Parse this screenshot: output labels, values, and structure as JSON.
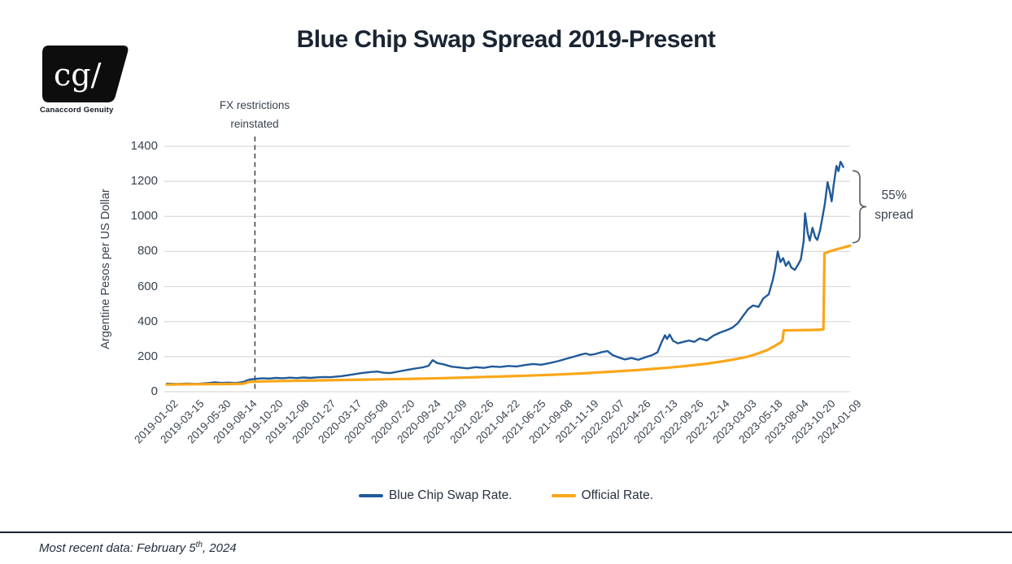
{
  "header": {
    "logo": {
      "mark": "cg/",
      "company": "Canaccord Genuity"
    }
  },
  "chart_data": {
    "type": "line",
    "title": "Blue Chip Swap Spread 2019-Present",
    "xlabel": "",
    "ylabel": "Argentine Pesos per US Dollar",
    "ylim": [
      0,
      1400
    ],
    "y_ticks": [
      0,
      200,
      400,
      600,
      800,
      1000,
      1200,
      1400
    ],
    "grid": "horizontal",
    "legend_position": "bottom",
    "x_labels": [
      "2019-01-02",
      "2019-03-15",
      "2019-05-30",
      "2019-08-14",
      "2019-10-20",
      "2019-12-08",
      "2020-01-27",
      "2020-03-17",
      "2020-05-08",
      "2020-07-20",
      "2020-09-24",
      "2020-12-09",
      "2021-02-26",
      "2021-04-22",
      "2021-06-25",
      "2021-09-08",
      "2021-11-19",
      "2022-02-07",
      "2022-04-26",
      "2022-07-13",
      "2022-09-26",
      "2022-12-14",
      "2023-03-03",
      "2023-05-18",
      "2023-08-04",
      "2023-10-20",
      "2024-01-09"
    ],
    "series": [
      {
        "name": "Blue Chip Swap Rate.",
        "color": "#205A99",
        "points": [
          [
            0.0,
            46
          ],
          [
            0.015,
            44
          ],
          [
            0.03,
            47
          ],
          [
            0.045,
            45
          ],
          [
            0.06,
            49
          ],
          [
            0.07,
            54
          ],
          [
            0.08,
            50
          ],
          [
            0.09,
            52
          ],
          [
            0.1,
            50
          ],
          [
            0.108,
            53
          ],
          [
            0.113,
            57
          ],
          [
            0.118,
            66
          ],
          [
            0.124,
            71
          ],
          [
            0.129,
            73
          ],
          [
            0.14,
            77
          ],
          [
            0.15,
            75
          ],
          [
            0.16,
            79
          ],
          [
            0.17,
            77
          ],
          [
            0.18,
            80
          ],
          [
            0.19,
            78
          ],
          [
            0.2,
            81
          ],
          [
            0.21,
            79
          ],
          [
            0.22,
            82
          ],
          [
            0.23,
            84
          ],
          [
            0.24,
            83
          ],
          [
            0.256,
            89
          ],
          [
            0.27,
            97
          ],
          [
            0.285,
            106
          ],
          [
            0.298,
            112
          ],
          [
            0.308,
            115
          ],
          [
            0.318,
            108
          ],
          [
            0.327,
            106
          ],
          [
            0.34,
            116
          ],
          [
            0.351,
            124
          ],
          [
            0.363,
            132
          ],
          [
            0.375,
            139
          ],
          [
            0.383,
            148
          ],
          [
            0.389,
            180
          ],
          [
            0.396,
            163
          ],
          [
            0.405,
            156
          ],
          [
            0.417,
            143
          ],
          [
            0.428,
            138
          ],
          [
            0.44,
            133
          ],
          [
            0.452,
            140
          ],
          [
            0.464,
            136
          ],
          [
            0.476,
            144
          ],
          [
            0.488,
            141
          ],
          [
            0.5,
            147
          ],
          [
            0.512,
            144
          ],
          [
            0.524,
            152
          ],
          [
            0.536,
            158
          ],
          [
            0.548,
            154
          ],
          [
            0.56,
            163
          ],
          [
            0.572,
            174
          ],
          [
            0.585,
            188
          ],
          [
            0.598,
            202
          ],
          [
            0.606,
            212
          ],
          [
            0.613,
            218
          ],
          [
            0.62,
            210
          ],
          [
            0.628,
            216
          ],
          [
            0.637,
            226
          ],
          [
            0.645,
            232
          ],
          [
            0.652,
            210
          ],
          [
            0.661,
            196
          ],
          [
            0.67,
            184
          ],
          [
            0.68,
            192
          ],
          [
            0.69,
            182
          ],
          [
            0.7,
            196
          ],
          [
            0.71,
            208
          ],
          [
            0.718,
            224
          ],
          [
            0.724,
            282
          ],
          [
            0.729,
            322
          ],
          [
            0.732,
            301
          ],
          [
            0.736,
            326
          ],
          [
            0.741,
            290
          ],
          [
            0.748,
            276
          ],
          [
            0.756,
            284
          ],
          [
            0.764,
            292
          ],
          [
            0.772,
            284
          ],
          [
            0.78,
            304
          ],
          [
            0.79,
            292
          ],
          [
            0.8,
            320
          ],
          [
            0.81,
            338
          ],
          [
            0.82,
            352
          ],
          [
            0.828,
            366
          ],
          [
            0.836,
            392
          ],
          [
            0.843,
            430
          ],
          [
            0.851,
            472
          ],
          [
            0.858,
            492
          ],
          [
            0.866,
            484
          ],
          [
            0.873,
            532
          ],
          [
            0.881,
            556
          ],
          [
            0.887,
            640
          ],
          [
            0.89,
            695
          ],
          [
            0.894,
            800
          ],
          [
            0.898,
            740
          ],
          [
            0.902,
            762
          ],
          [
            0.906,
            718
          ],
          [
            0.91,
            742
          ],
          [
            0.914,
            708
          ],
          [
            0.919,
            695
          ],
          [
            0.924,
            726
          ],
          [
            0.928,
            756
          ],
          [
            0.932,
            858
          ],
          [
            0.934,
            1018
          ],
          [
            0.938,
            905
          ],
          [
            0.941,
            862
          ],
          [
            0.945,
            935
          ],
          [
            0.949,
            880
          ],
          [
            0.952,
            866
          ],
          [
            0.956,
            920
          ],
          [
            0.959,
            985
          ],
          [
            0.963,
            1070
          ],
          [
            0.967,
            1195
          ],
          [
            0.97,
            1148
          ],
          [
            0.973,
            1086
          ],
          [
            0.976,
            1180
          ],
          [
            0.98,
            1288
          ],
          [
            0.983,
            1258
          ],
          [
            0.986,
            1312
          ],
          [
            0.988,
            1298
          ],
          [
            0.99,
            1282
          ]
        ]
      },
      {
        "name": "Official Rate.",
        "color": "#FAA619",
        "points": [
          [
            0.0,
            41
          ],
          [
            0.03,
            42
          ],
          [
            0.06,
            43
          ],
          [
            0.09,
            44
          ],
          [
            0.112,
            46
          ],
          [
            0.116,
            50
          ],
          [
            0.12,
            56
          ],
          [
            0.14,
            59
          ],
          [
            0.17,
            61
          ],
          [
            0.2,
            63
          ],
          [
            0.23,
            65
          ],
          [
            0.26,
            67
          ],
          [
            0.29,
            69
          ],
          [
            0.32,
            71
          ],
          [
            0.35,
            73
          ],
          [
            0.38,
            75
          ],
          [
            0.41,
            78
          ],
          [
            0.44,
            81
          ],
          [
            0.47,
            85
          ],
          [
            0.5,
            88
          ],
          [
            0.53,
            92
          ],
          [
            0.56,
            96
          ],
          [
            0.59,
            101
          ],
          [
            0.61,
            105
          ],
          [
            0.63,
            110
          ],
          [
            0.65,
            114
          ],
          [
            0.67,
            119
          ],
          [
            0.69,
            124
          ],
          [
            0.71,
            130
          ],
          [
            0.73,
            136
          ],
          [
            0.75,
            143
          ],
          [
            0.77,
            151
          ],
          [
            0.79,
            160
          ],
          [
            0.81,
            171
          ],
          [
            0.83,
            184
          ],
          [
            0.85,
            200
          ],
          [
            0.865,
            218
          ],
          [
            0.88,
            240
          ],
          [
            0.89,
            262
          ],
          [
            0.897,
            278
          ],
          [
            0.901,
            290
          ],
          [
            0.903,
            350
          ],
          [
            0.92,
            351
          ],
          [
            0.94,
            352
          ],
          [
            0.958,
            354
          ],
          [
            0.961,
            356
          ],
          [
            0.9625,
            790
          ],
          [
            0.97,
            800
          ],
          [
            0.978,
            810
          ],
          [
            0.986,
            818
          ],
          [
            1.0,
            833
          ]
        ]
      }
    ],
    "annotations": {
      "vline": {
        "x_frac": 0.129,
        "label_line1": "FX restrictions",
        "label_line2": "reinstated"
      },
      "bracket": {
        "top_value": 1260,
        "bottom_value": 850,
        "label_line1": "55%",
        "label_line2": "spread"
      }
    }
  },
  "footer": {
    "note_prefix": "Most recent data: February 5",
    "note_sup": "th",
    "note_suffix": ", 2024"
  }
}
